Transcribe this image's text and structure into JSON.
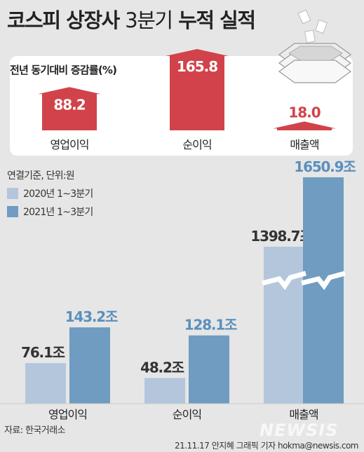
{
  "title_bold": "코스피 상장사",
  "title_thin": "3분기",
  "title_rest": "누적 실적",
  "growth_label": "전년 동기대비 증감률(%)",
  "units_note": "연결기준, 단위:원",
  "legend": [
    {
      "label": "2020년 1~3분기",
      "color": "#b4c6dc"
    },
    {
      "label": "2021년 1~3분기",
      "color": "#6f9cc0"
    }
  ],
  "source": "자료: 한국거래소",
  "credit": "21.11.17 안지혜 그래픽 기자 hokma@newsis.com",
  "watermark": "NEWSIS",
  "colors": {
    "growth_arrow": "#d2424a",
    "bar_2020": "#b4c6dc",
    "bar_2021": "#6f9cc0",
    "label_2021": "#5b8fbc"
  },
  "chart_data": [
    {
      "type": "bar",
      "title": "전년 동기대비 증감률(%)",
      "categories": [
        "영업이익",
        "순이익",
        "매출액"
      ],
      "values": [
        88.2,
        165.8,
        18.0
      ],
      "value_labels": [
        "88.2",
        "165.8",
        "18.0"
      ]
    },
    {
      "type": "bar",
      "units": "연결기준, 단위:원",
      "categories": [
        "영업이익",
        "순이익",
        "매출액"
      ],
      "series": [
        {
          "name": "2020년 1~3분기",
          "values": [
            76.1,
            48.2,
            1398.7
          ],
          "labels": [
            "76.1조",
            "48.2조",
            "1398.7조"
          ]
        },
        {
          "name": "2021년 1~3분기",
          "values": [
            143.2,
            128.1,
            1650.9
          ],
          "labels": [
            "143.2조",
            "128.1조",
            "1650.9조"
          ]
        }
      ],
      "axis_break": true
    }
  ]
}
